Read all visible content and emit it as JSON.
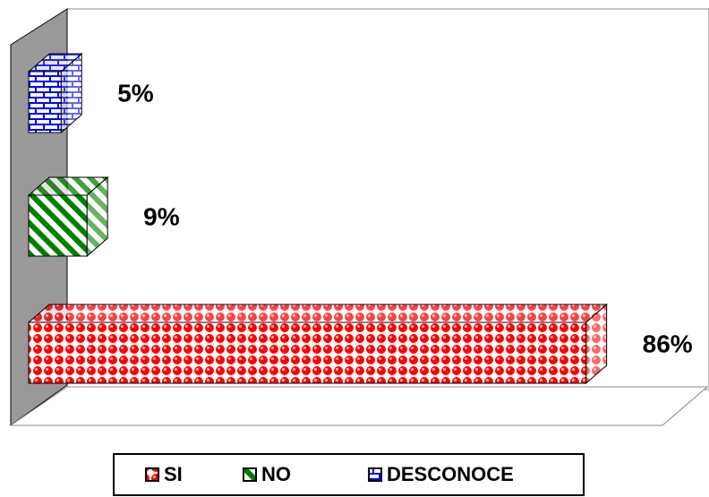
{
  "chart_data": {
    "type": "bar",
    "orientation": "horizontal",
    "categories": [
      "SI",
      "NO",
      "DESCONOCE"
    ],
    "values": [
      86,
      9,
      5
    ],
    "value_labels": [
      "86%",
      "9%",
      "5%"
    ],
    "colors": [
      "#ff0000",
      "#008000",
      "#0000ff"
    ],
    "xlim": [
      0,
      100
    ],
    "legend": "bottom"
  }
}
